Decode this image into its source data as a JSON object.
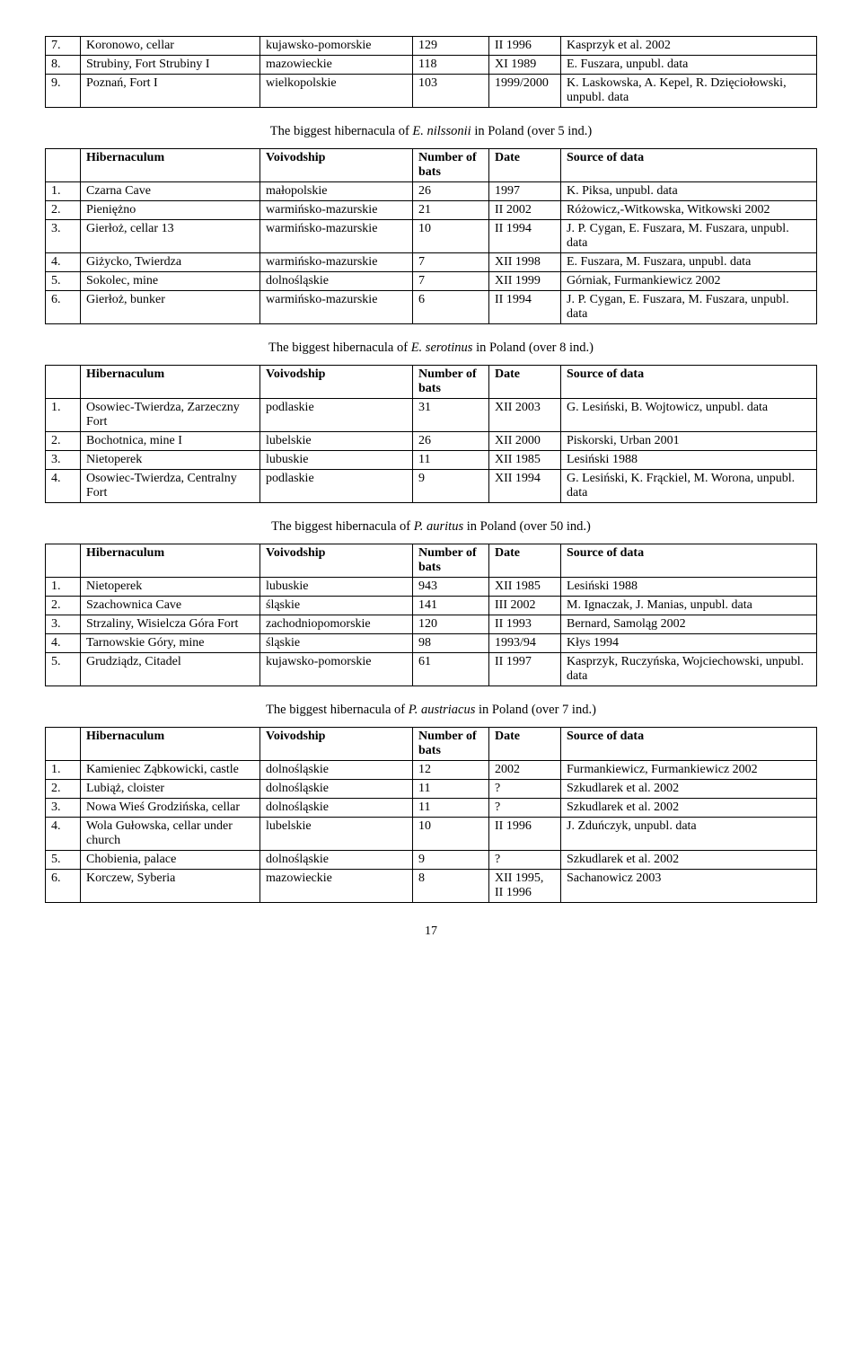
{
  "top_table": {
    "rows": [
      [
        "7.",
        "Koronowo, cellar",
        "kujawsko-pomorskie",
        "129",
        "II 1996",
        "Kasprzyk et al. 2002"
      ],
      [
        "8.",
        "Strubiny, Fort Strubiny I",
        "mazowieckie",
        "118",
        "XI 1989",
        "E. Fuszara, unpubl. data"
      ],
      [
        "9.",
        "Poznań, Fort I",
        "wielkopolskie",
        "103",
        "1999/2000",
        "K. Laskowska, A. Kepel, R. Dzięciołowski, unpubl. data"
      ]
    ]
  },
  "caption1": {
    "pre": "The biggest hibernacula of ",
    "it": "E. nilssonii",
    "post": " in Poland (over 5 ind.)"
  },
  "header": [
    "",
    "Hibernaculum",
    "Voivodship",
    "Number of bats",
    "Date",
    "Source of data"
  ],
  "nilssonii": {
    "rows": [
      [
        "1.",
        "Czarna Cave",
        "małopolskie",
        "26",
        "1997",
        "K. Piksa, unpubl. data"
      ],
      [
        "2.",
        "Pieniężno",
        "warmińsko-mazurskie",
        "21",
        "II 2002",
        "Różowicz,-Witkowska, Witkowski 2002"
      ],
      [
        "3.",
        "Gierłoż, cellar 13",
        "warmińsko-mazurskie",
        "10",
        "II 1994",
        "J. P. Cygan, E. Fuszara, M. Fuszara, unpubl. data"
      ],
      [
        "4.",
        "Giżycko, Twierdza",
        "warmińsko-mazurskie",
        "7",
        "XII 1998",
        "E. Fuszara, M. Fuszara, unpubl. data"
      ],
      [
        "5.",
        "Sokolec, mine",
        "dolnośląskie",
        "7",
        "XII 1999",
        "Górniak, Furmankiewicz 2002"
      ],
      [
        "6.",
        "Gierłoż, bunker",
        "warmińsko-mazurskie",
        "6",
        "II 1994",
        "J. P. Cygan, E. Fuszara, M. Fuszara, unpubl. data"
      ]
    ]
  },
  "caption2": {
    "pre": "The biggest hibernacula of ",
    "it": "E. serotinus",
    "post": " in Poland (over 8 ind.)"
  },
  "serotinus": {
    "rows": [
      [
        "1.",
        "Osowiec-Twierdza, Zarzeczny Fort",
        "podlaskie",
        "31",
        "XII 2003",
        "G. Lesiński, B. Wojtowicz, unpubl. data"
      ],
      [
        "2.",
        "Bochotnica, mine I",
        "lubelskie",
        "26",
        "XII 2000",
        "Piskorski, Urban 2001"
      ],
      [
        "3.",
        "Nietoperek",
        "lubuskie",
        "11",
        "XII 1985",
        "Lesiński 1988"
      ],
      [
        "4.",
        "Osowiec-Twierdza, Centralny Fort",
        "podlaskie",
        "9",
        "XII 1994",
        "G. Lesiński, K. Frąckiel, M. Worona, unpubl. data"
      ]
    ]
  },
  "caption3": {
    "pre": "The biggest hibernacula of ",
    "it": "P. auritus",
    "post": " in Poland (over 50 ind.)"
  },
  "auritus": {
    "rows": [
      [
        "1.",
        "Nietoperek",
        "lubuskie",
        "943",
        "XII 1985",
        "Lesiński 1988"
      ],
      [
        "2.",
        "Szachownica Cave",
        "śląskie",
        "141",
        "III 2002",
        "M. Ignaczak, J. Manias, unpubl. data"
      ],
      [
        "3.",
        "Strzaliny, Wisielcza Góra Fort",
        "zachodniopomorskie",
        "120",
        "II 1993",
        "Bernard, Samoląg 2002"
      ],
      [
        "4.",
        "Tarnowskie Góry, mine",
        "śląskie",
        "98",
        "1993/94",
        "Kłys 1994"
      ],
      [
        "5.",
        "Grudziądz, Citadel",
        "kujawsko-pomorskie",
        "61",
        "II 1997",
        "Kasprzyk, Ruczyńska, Wojciechowski, unpubl. data"
      ]
    ]
  },
  "caption4": {
    "pre": "The biggest hibernacula of ",
    "it": "P. austriacus",
    "post": " in Poland (over 7 ind.)"
  },
  "austriacus": {
    "rows": [
      [
        "1.",
        "Kamieniec Ząbkowicki, castle",
        "dolnośląskie",
        "12",
        "2002",
        "Furmankiewicz, Furmankiewicz 2002"
      ],
      [
        "2.",
        "Lubiąż, cloister",
        "dolnośląskie",
        "11",
        "?",
        "Szkudlarek et al. 2002"
      ],
      [
        "3.",
        "Nowa Wieś Grodzińska, cellar",
        "dolnośląskie",
        "11",
        "?",
        "Szkudlarek et al. 2002"
      ],
      [
        "4.",
        "Wola Gułowska, cellar under church",
        "lubelskie",
        "10",
        "II 1996",
        "J. Zduńczyk, unpubl. data"
      ],
      [
        "5.",
        "Chobienia, palace",
        "dolnośląskie",
        "9",
        "?",
        "Szkudlarek et al. 2002"
      ],
      [
        "6.",
        "Korczew, Syberia",
        "mazowieckie",
        "8",
        "XII 1995, II 1996",
        "Sachanowicz 2003"
      ]
    ]
  },
  "page_number": "17",
  "col_widths": [
    "26px",
    "200px",
    "170px",
    "85px",
    "80px",
    "auto"
  ]
}
